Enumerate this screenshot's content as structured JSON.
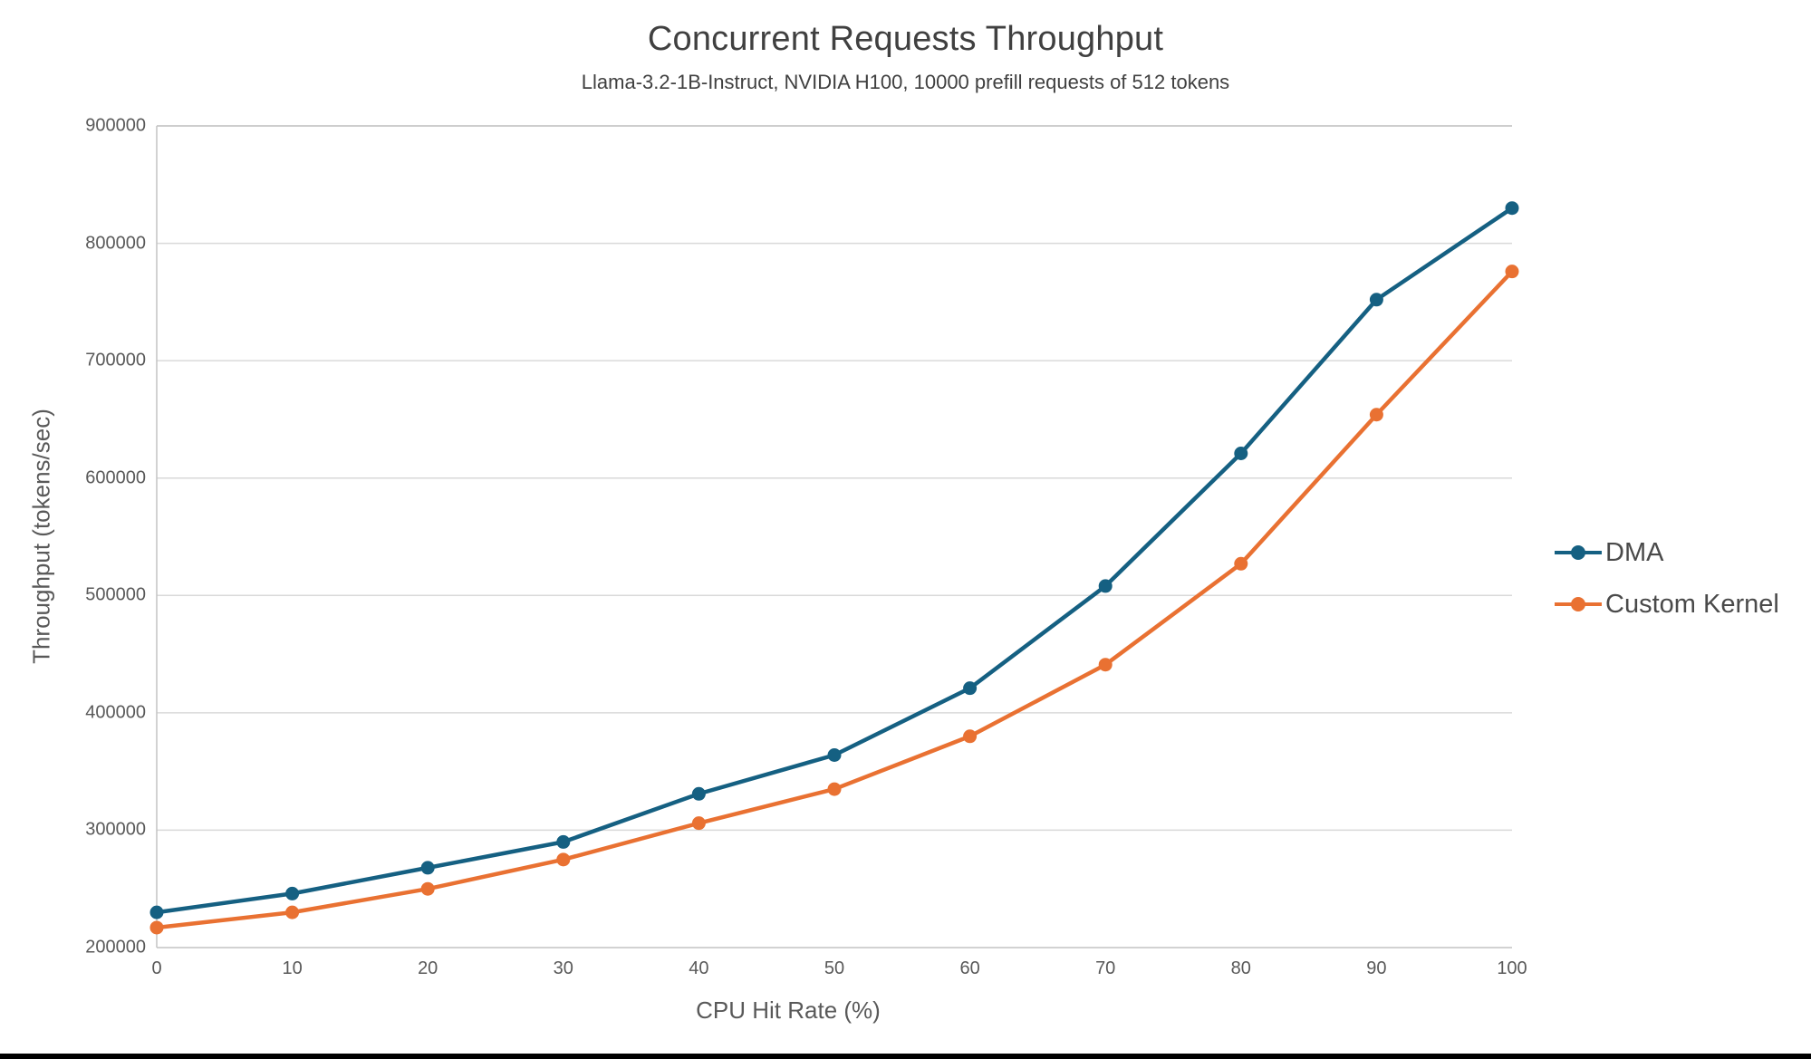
{
  "chart_data": {
    "type": "line",
    "title": "Concurrent Requests Throughput",
    "subtitle": "Llama-3.2-1B-Instruct, NVIDIA H100, 10000 prefill requests of 512 tokens",
    "xlabel": "CPU Hit Rate (%)",
    "ylabel": "Throughput (tokens/sec)",
    "x": [
      0,
      10,
      20,
      30,
      40,
      50,
      60,
      70,
      80,
      90,
      100
    ],
    "x_tick_labels": [
      "0",
      "10",
      "20",
      "30",
      "40",
      "50",
      "60",
      "70",
      "80",
      "90",
      "100"
    ],
    "y_ticks": [
      200000,
      300000,
      400000,
      500000,
      600000,
      700000,
      800000,
      900000
    ],
    "y_tick_labels": [
      "200000",
      "300000",
      "400000",
      "500000",
      "600000",
      "700000",
      "800000",
      "900000"
    ],
    "xlim": [
      0,
      100
    ],
    "ylim": [
      200000,
      900000
    ],
    "grid": "horizontal",
    "legend_position": "right",
    "series": [
      {
        "name": "DMA",
        "color": "#156082",
        "values": [
          230000,
          246000,
          268000,
          290000,
          331000,
          364000,
          421000,
          508000,
          621000,
          752000,
          830000
        ]
      },
      {
        "name": "Custom Kernel",
        "color": "#E97132",
        "values": [
          217000,
          230000,
          250000,
          275000,
          306000,
          335000,
          380000,
          441000,
          527000,
          654000,
          776000
        ]
      }
    ],
    "colors": {
      "gridline": "#D9D9D9",
      "axis_border": "#C3C3C3",
      "tick_text": "#595959",
      "title_text": "#404040",
      "bottom_bar": "#000000"
    }
  }
}
